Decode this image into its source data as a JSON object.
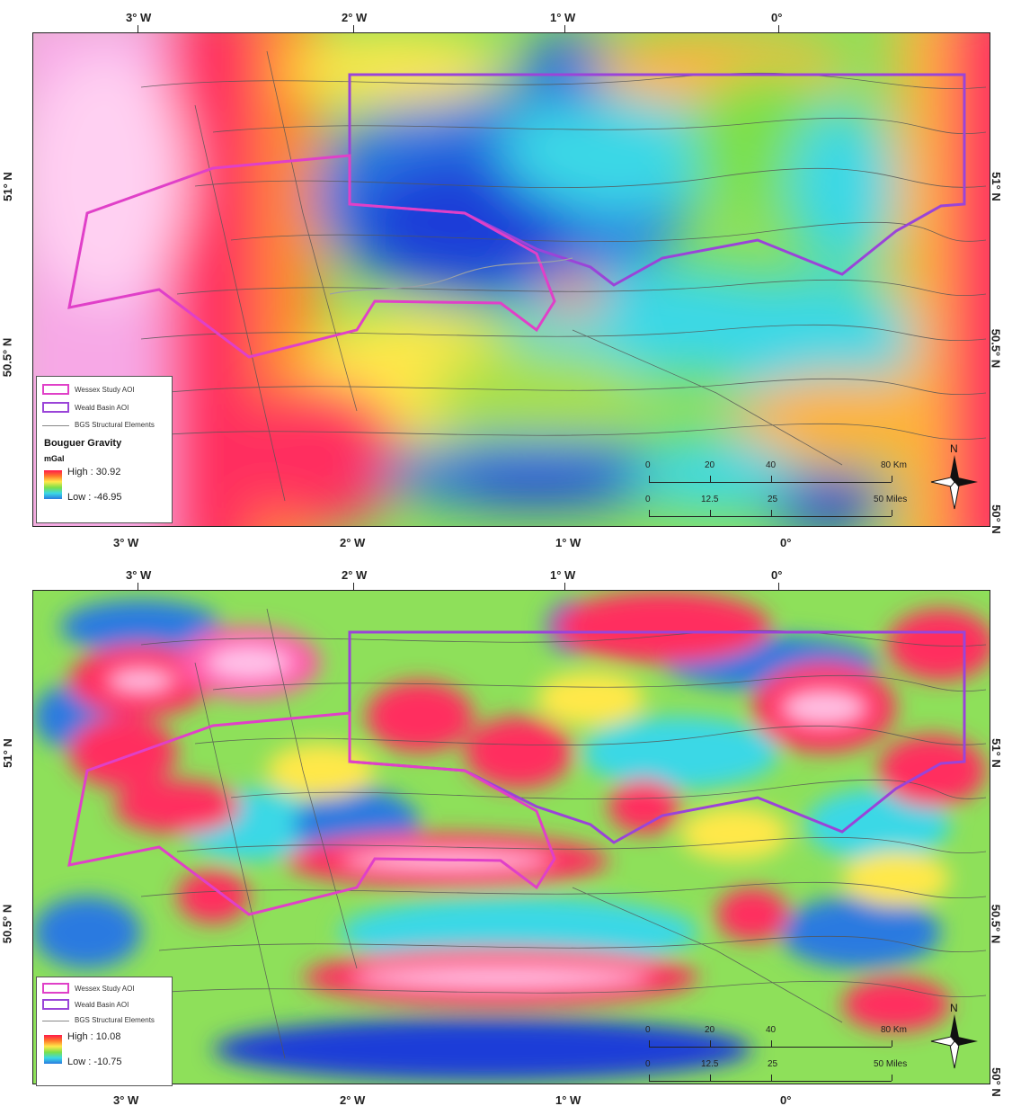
{
  "lat_lon_labels": {
    "top": [
      "3° W",
      "2° W",
      "1° W",
      "0°"
    ],
    "bottom": [
      "3° W",
      "2° W",
      "1° W",
      "0°"
    ],
    "left": [
      "51° N",
      "50.5° N"
    ],
    "right": [
      "51° N",
      "50.5° N",
      "50° N"
    ]
  },
  "panels": [
    {
      "id": "bouguer",
      "legend": {
        "wessex_label": "Wessex Study AOI",
        "weald_label": "Weald Basin AOI",
        "structural_label": "BGS Structural Elements",
        "title": "Bouguer Gravity",
        "unit": "mGal",
        "high_label": "High : 30.92",
        "low_label": "Low : -46.95"
      }
    },
    {
      "id": "residual",
      "legend": {
        "wessex_label": "Wessex Study AOI",
        "weald_label": "Weald Basin AOI",
        "structural_label": "BGS Structural Elements",
        "high_label": "High : 10.08",
        "low_label": "Low : -10.75"
      }
    }
  ],
  "scalebar": {
    "km_labels": [
      "0",
      "20",
      "40",
      "80 Km"
    ],
    "mile_labels": [
      "0",
      "12.5",
      "25",
      "50 Miles"
    ]
  },
  "north_label": "N",
  "colors": {
    "wessex_aoi": "#e040c8",
    "weald_aoi": "#9a44d8",
    "structural": "#555555"
  }
}
